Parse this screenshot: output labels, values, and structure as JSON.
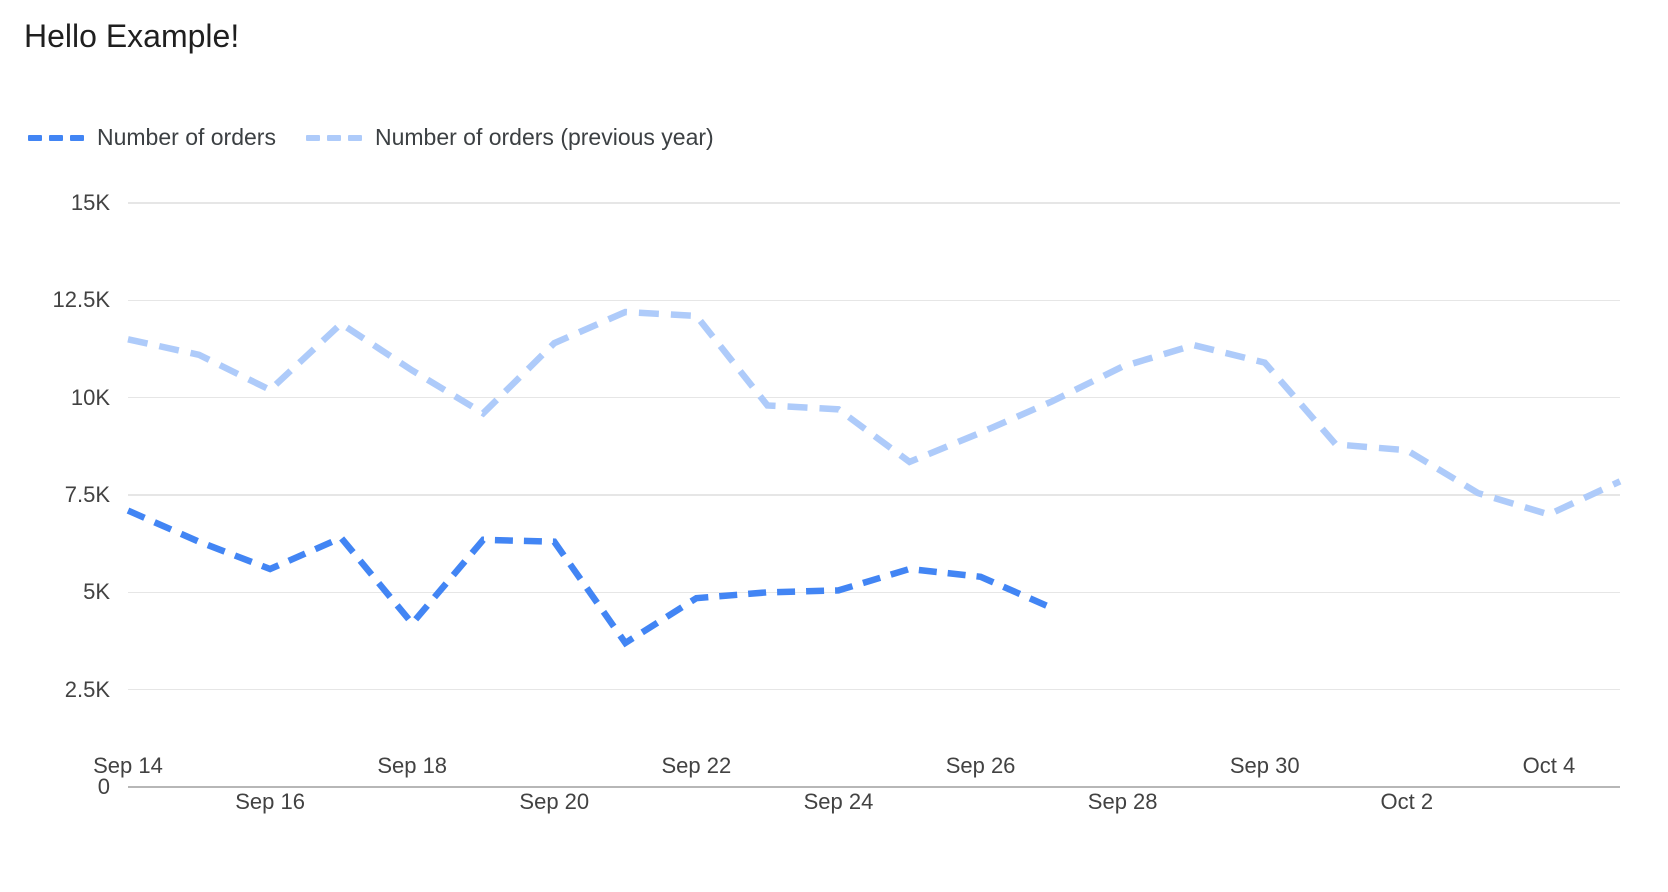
{
  "page": {
    "title": "Hello Example!"
  },
  "legend": [
    {
      "label": "Number of orders",
      "color": "#4285f4"
    },
    {
      "label": "Number of orders (previous year)",
      "color": "#aecbfa"
    }
  ],
  "colors": {
    "series_current": "#4285f4",
    "series_previous": "#aecbfa",
    "gridline": "#e6e6e6",
    "axis_line": "#b7b7b7",
    "tick_text": "#424242",
    "title_text": "#1f1f1f",
    "background": "#ffffff"
  },
  "chart_data": {
    "type": "line",
    "title": "Hello Example!",
    "line_style": "dashed",
    "grid": "horizontal",
    "legend_position": "top-left",
    "ylim": [
      0,
      15000
    ],
    "x": [
      "Sep 14",
      "Sep 15",
      "Sep 16",
      "Sep 17",
      "Sep 18",
      "Sep 19",
      "Sep 20",
      "Sep 21",
      "Sep 22",
      "Sep 23",
      "Sep 24",
      "Sep 25",
      "Sep 26",
      "Sep 27",
      "Sep 28",
      "Sep 29",
      "Sep 30",
      "Oct 1",
      "Oct 2",
      "Oct 3",
      "Oct 4",
      "Oct 5"
    ],
    "series": [
      {
        "name": "Number of orders",
        "color": "#4285f4",
        "dash": [
          18,
          11
        ],
        "values": [
          7100,
          6300,
          5600,
          6400,
          4200,
          6350,
          6300,
          3700,
          4850,
          5000,
          5050,
          5600,
          5400,
          4600,
          null,
          null,
          null,
          null,
          null,
          null,
          null,
          null
        ]
      },
      {
        "name": "Number of orders (previous year)",
        "color": "#aecbfa",
        "dash": [
          20,
          12
        ],
        "values": [
          11500,
          11100,
          10200,
          11900,
          10700,
          9600,
          11400,
          12200,
          12100,
          9800,
          9700,
          8350,
          9100,
          9900,
          10800,
          11350,
          10900,
          8800,
          8650,
          7550,
          7000,
          7850
        ]
      }
    ],
    "y_ticks": [
      {
        "label": "0",
        "value": 0
      },
      {
        "label": "2.5K",
        "value": 2500
      },
      {
        "label": "5K",
        "value": 5000
      },
      {
        "label": "7.5K",
        "value": 7500
      },
      {
        "label": "10K",
        "value": 10000
      },
      {
        "label": "12.5K",
        "value": 12500
      },
      {
        "label": "15K",
        "value": 15000
      }
    ],
    "x_tick_labels": [
      {
        "label": "Sep 14",
        "index": 0,
        "row": 1
      },
      {
        "label": "Sep 16",
        "index": 2,
        "row": 2
      },
      {
        "label": "Sep 18",
        "index": 4,
        "row": 1
      },
      {
        "label": "Sep 20",
        "index": 6,
        "row": 2
      },
      {
        "label": "Sep 22",
        "index": 8,
        "row": 1
      },
      {
        "label": "Sep 24",
        "index": 10,
        "row": 2
      },
      {
        "label": "Sep 26",
        "index": 12,
        "row": 1
      },
      {
        "label": "Sep 28",
        "index": 14,
        "row": 2
      },
      {
        "label": "Sep 30",
        "index": 16,
        "row": 1
      },
      {
        "label": "Oct 2",
        "index": 18,
        "row": 2
      },
      {
        "label": "Oct 4",
        "index": 20,
        "row": 1
      }
    ]
  }
}
